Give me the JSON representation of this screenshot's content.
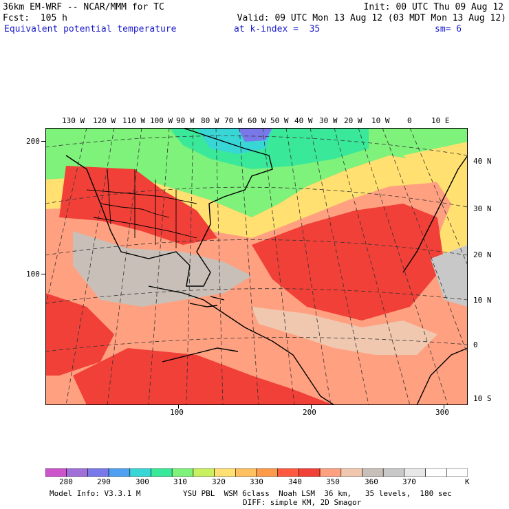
{
  "header": {
    "model": "36km EM-WRF -- NCAR/MMM for TC",
    "init": "Init: 00 UTC Thu 09 Aug 12",
    "fcst": "Fcst:  105 h",
    "valid": "Valid: 09 UTC Mon 13 Aug 12 (03 MDT Mon 13 Aug 12)",
    "field": "Equivalent potential temperature",
    "level": "at k-index =  35",
    "smooth": "sm= 6"
  },
  "map": {
    "lon_labels": [
      "130 W",
      "120 W",
      "110 W",
      "100 W",
      "90 W",
      "80 W",
      "70 W",
      "60 W",
      "50 W",
      "40 W",
      "30 W",
      "20 W",
      "10 W",
      "0",
      "10 E"
    ],
    "lat_labels": [
      "40 N",
      "30 N",
      "20 N",
      "10 N",
      "0",
      "10 S"
    ],
    "grid_y_labels": [
      "200",
      "100"
    ],
    "grid_x_labels": [
      "100",
      "200",
      "300"
    ]
  },
  "colorbar": {
    "colors": [
      "#cc55cc",
      "#a070d8",
      "#7878e8",
      "#4fa0f0",
      "#39d6d6",
      "#3ae89a",
      "#7ef27a",
      "#c8f060",
      "#ffe070",
      "#ffc060",
      "#ff9a4a",
      "#ff5a40",
      "#f04038",
      "#ffa080",
      "#f0c8b0",
      "#c8c0b8",
      "#c8c8c8",
      "#e8e8e8",
      "#ffffff",
      "#ffffff"
    ],
    "labels": [
      "280",
      "290",
      "300",
      "310",
      "320",
      "330",
      "340",
      "350",
      "360",
      "370"
    ],
    "unit": "K"
  },
  "footer": {
    "model_info": "Model Info: V3.3.1 M",
    "physics": "YSU PBL  WSM 6class  Noah LSM  36 km,   35 levels,  180 sec",
    "diffusion": "DIFF: simple KM, 2D Smagor"
  }
}
